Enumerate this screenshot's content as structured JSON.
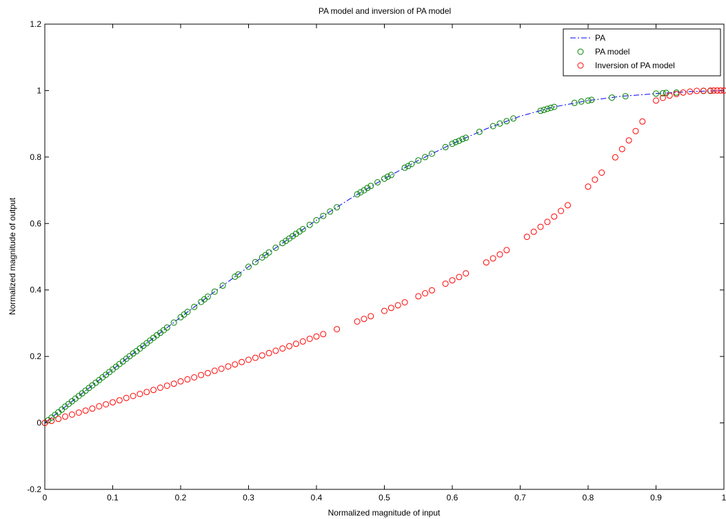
{
  "chart_data": {
    "type": "scatter",
    "title": "PA model and inversion of PA model",
    "xlabel": "Normalized magnitude of input",
    "ylabel": "Normalized magnitude of output",
    "xlim": [
      0,
      1
    ],
    "ylim": [
      -0.2,
      1.2
    ],
    "x_ticks": [
      0,
      0.1,
      0.2,
      0.3,
      0.4,
      0.5,
      0.6,
      0.7,
      0.8,
      0.9,
      1
    ],
    "y_ticks": [
      -0.2,
      0,
      0.2,
      0.4,
      0.6,
      0.8,
      1,
      1.2
    ],
    "x_tick_labels": [
      "0",
      "0.1",
      "0.2",
      "0.3",
      "0.4",
      "0.5",
      "0.6",
      "0.7",
      "0.8",
      "0.9",
      "1"
    ],
    "y_tick_labels": [
      "-0.2",
      "0",
      "0.2",
      "0.4",
      "0.6",
      "0.8",
      "1",
      "1.2"
    ],
    "grid": false,
    "legend_position": "top-right",
    "series": [
      {
        "name": "PA",
        "style": "dash-dot line",
        "color": "#0000ff",
        "x": [
          0,
          0.05,
          0.1,
          0.15,
          0.2,
          0.25,
          0.3,
          0.35,
          0.4,
          0.45,
          0.5,
          0.55,
          0.6,
          0.65,
          0.7,
          0.75,
          0.8,
          0.85,
          0.9,
          0.95,
          1.0
        ],
        "y": [
          0,
          0.081,
          0.161,
          0.24,
          0.318,
          0.395,
          0.47,
          0.541,
          0.61,
          0.675,
          0.735,
          0.79,
          0.84,
          0.885,
          0.923,
          0.951,
          0.97,
          0.983,
          0.991,
          0.997,
          1.0
        ]
      },
      {
        "name": "PA model",
        "style": "circle markers",
        "color": "#008000",
        "x": [
          0.0,
          0.005,
          0.01,
          0.015,
          0.02,
          0.025,
          0.03,
          0.035,
          0.04,
          0.045,
          0.05,
          0.055,
          0.06,
          0.065,
          0.07,
          0.075,
          0.08,
          0.085,
          0.09,
          0.095,
          0.1,
          0.105,
          0.11,
          0.115,
          0.12,
          0.125,
          0.13,
          0.135,
          0.14,
          0.145,
          0.15,
          0.155,
          0.16,
          0.165,
          0.17,
          0.175,
          0.18,
          0.19,
          0.2,
          0.205,
          0.21,
          0.22,
          0.23,
          0.235,
          0.24,
          0.25,
          0.262,
          0.28,
          0.285,
          0.3,
          0.31,
          0.32,
          0.325,
          0.33,
          0.34,
          0.35,
          0.355,
          0.36,
          0.365,
          0.37,
          0.375,
          0.38,
          0.39,
          0.4,
          0.41,
          0.42,
          0.43,
          0.46,
          0.465,
          0.47,
          0.475,
          0.48,
          0.49,
          0.5,
          0.505,
          0.51,
          0.53,
          0.535,
          0.54,
          0.55,
          0.56,
          0.57,
          0.59,
          0.6,
          0.605,
          0.61,
          0.615,
          0.62,
          0.64,
          0.66,
          0.67,
          0.68,
          0.69,
          0.73,
          0.735,
          0.74,
          0.745,
          0.75,
          0.78,
          0.79,
          0.8,
          0.805,
          0.835,
          0.855,
          0.9,
          0.91,
          0.915,
          0.93,
          0.97,
          0.98
        ],
        "y": [
          0.0,
          0.008,
          0.016,
          0.024,
          0.032,
          0.04,
          0.049,
          0.057,
          0.065,
          0.073,
          0.081,
          0.089,
          0.097,
          0.105,
          0.113,
          0.121,
          0.129,
          0.137,
          0.145,
          0.153,
          0.161,
          0.169,
          0.177,
          0.185,
          0.193,
          0.201,
          0.209,
          0.216,
          0.224,
          0.232,
          0.24,
          0.248,
          0.256,
          0.264,
          0.271,
          0.279,
          0.287,
          0.302,
          0.318,
          0.326,
          0.334,
          0.349,
          0.364,
          0.372,
          0.38,
          0.395,
          0.413,
          0.44,
          0.447,
          0.47,
          0.484,
          0.498,
          0.505,
          0.513,
          0.527,
          0.541,
          0.548,
          0.555,
          0.562,
          0.569,
          0.576,
          0.583,
          0.596,
          0.61,
          0.623,
          0.636,
          0.649,
          0.688,
          0.694,
          0.7,
          0.707,
          0.713,
          0.724,
          0.735,
          0.741,
          0.746,
          0.768,
          0.773,
          0.779,
          0.79,
          0.8,
          0.81,
          0.83,
          0.84,
          0.845,
          0.849,
          0.854,
          0.858,
          0.876,
          0.893,
          0.901,
          0.908,
          0.916,
          0.939,
          0.942,
          0.945,
          0.948,
          0.951,
          0.963,
          0.967,
          0.97,
          0.972,
          0.979,
          0.983,
          0.991,
          0.992,
          0.993,
          0.994,
          0.999,
          0.999
        ]
      },
      {
        "name": "Inversion of PA model",
        "style": "circle markers",
        "color": "#ff0000",
        "x": [
          0.0,
          0.01,
          0.02,
          0.03,
          0.04,
          0.05,
          0.06,
          0.07,
          0.08,
          0.09,
          0.1,
          0.11,
          0.12,
          0.13,
          0.14,
          0.15,
          0.16,
          0.17,
          0.18,
          0.19,
          0.2,
          0.21,
          0.22,
          0.23,
          0.24,
          0.25,
          0.26,
          0.27,
          0.28,
          0.29,
          0.3,
          0.31,
          0.32,
          0.33,
          0.34,
          0.35,
          0.36,
          0.37,
          0.38,
          0.39,
          0.4,
          0.41,
          0.43,
          0.46,
          0.47,
          0.48,
          0.5,
          0.51,
          0.52,
          0.53,
          0.55,
          0.56,
          0.57,
          0.59,
          0.6,
          0.61,
          0.62,
          0.65,
          0.66,
          0.67,
          0.68,
          0.71,
          0.72,
          0.73,
          0.74,
          0.75,
          0.76,
          0.77,
          0.8,
          0.81,
          0.82,
          0.84,
          0.85,
          0.86,
          0.87,
          0.88,
          0.9,
          0.91,
          0.92,
          0.93,
          0.94,
          0.95,
          0.96,
          0.97,
          0.98,
          0.985,
          0.99,
          0.995,
          1.0
        ],
        "y": [
          0.0,
          0.006,
          0.012,
          0.019,
          0.025,
          0.031,
          0.037,
          0.043,
          0.05,
          0.056,
          0.062,
          0.068,
          0.075,
          0.081,
          0.087,
          0.093,
          0.099,
          0.106,
          0.112,
          0.118,
          0.125,
          0.131,
          0.137,
          0.144,
          0.15,
          0.157,
          0.163,
          0.17,
          0.176,
          0.183,
          0.19,
          0.196,
          0.203,
          0.21,
          0.217,
          0.224,
          0.231,
          0.238,
          0.245,
          0.253,
          0.26,
          0.267,
          0.282,
          0.305,
          0.313,
          0.321,
          0.337,
          0.346,
          0.354,
          0.363,
          0.381,
          0.39,
          0.399,
          0.419,
          0.429,
          0.439,
          0.45,
          0.483,
          0.495,
          0.507,
          0.52,
          0.56,
          0.575,
          0.59,
          0.605,
          0.621,
          0.638,
          0.655,
          0.711,
          0.732,
          0.753,
          0.799,
          0.824,
          0.85,
          0.878,
          0.907,
          0.97,
          0.978,
          0.985,
          0.99,
          0.994,
          0.997,
          0.999,
          0.9995,
          0.9999,
          1.0,
          1.0,
          1.0,
          1.0
        ]
      }
    ]
  }
}
